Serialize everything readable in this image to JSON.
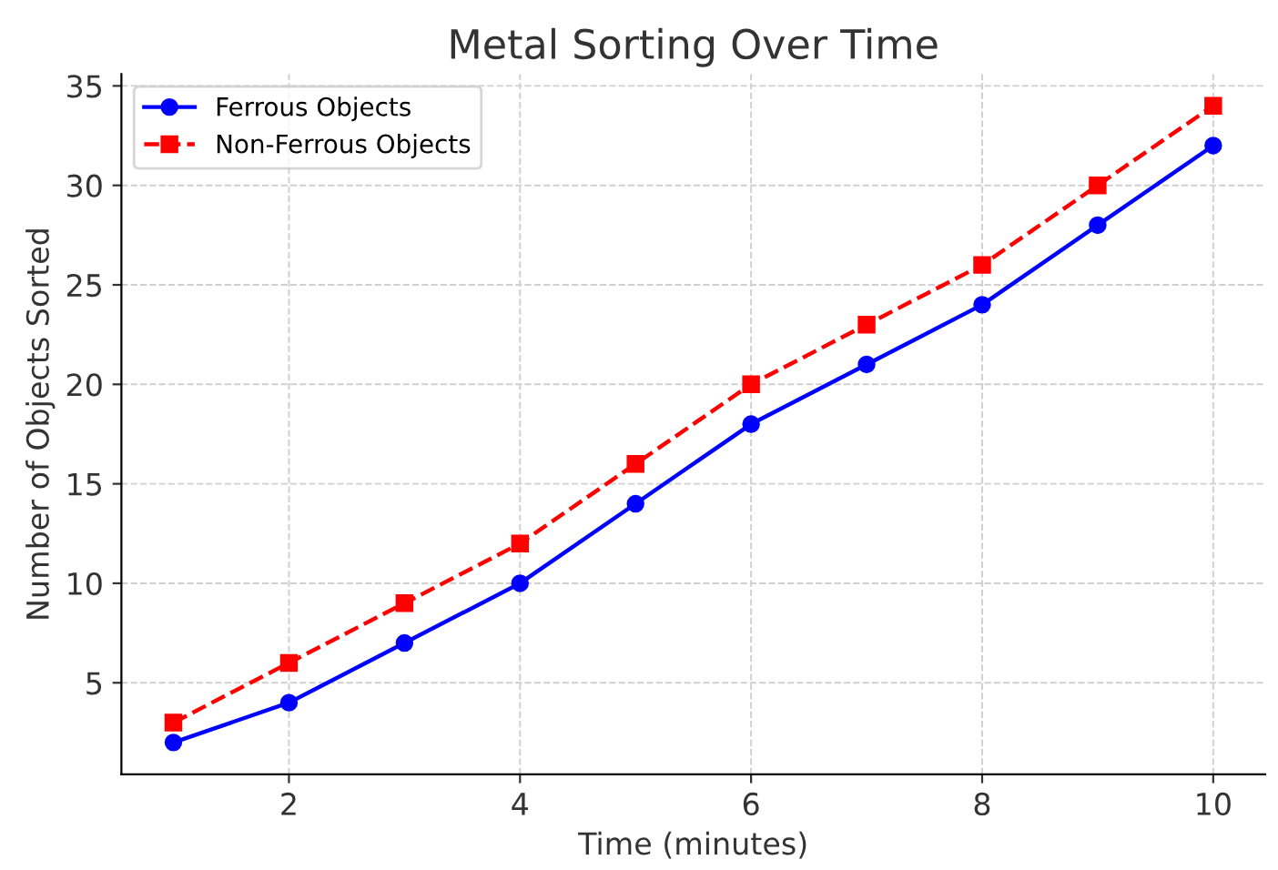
{
  "chart_data": {
    "type": "line",
    "title": "Metal Sorting Over Time",
    "xlabel": "Time (minutes)",
    "ylabel": "Number of Objects Sorted",
    "x": [
      1,
      2,
      3,
      4,
      5,
      6,
      7,
      8,
      9,
      10
    ],
    "series": [
      {
        "name": "Ferrous Objects",
        "color": "#0000ff",
        "values": [
          2,
          4,
          7,
          10,
          14,
          18,
          21,
          24,
          28,
          32
        ],
        "marker": "circle",
        "line_style": "solid"
      },
      {
        "name": "Non-Ferrous Objects",
        "color": "#ff0000",
        "values": [
          3,
          6,
          9,
          12,
          16,
          20,
          23,
          26,
          30,
          34
        ],
        "marker": "square",
        "line_style": "dashed"
      }
    ],
    "xlim": [
      0.55,
      10.45
    ],
    "xticks": [
      2,
      4,
      6,
      8,
      10
    ],
    "ylim": [
      0.4,
      35.6
    ],
    "yticks": [
      5,
      10,
      15,
      20,
      25,
      30,
      35
    ],
    "grid": true,
    "legend": "top left"
  }
}
